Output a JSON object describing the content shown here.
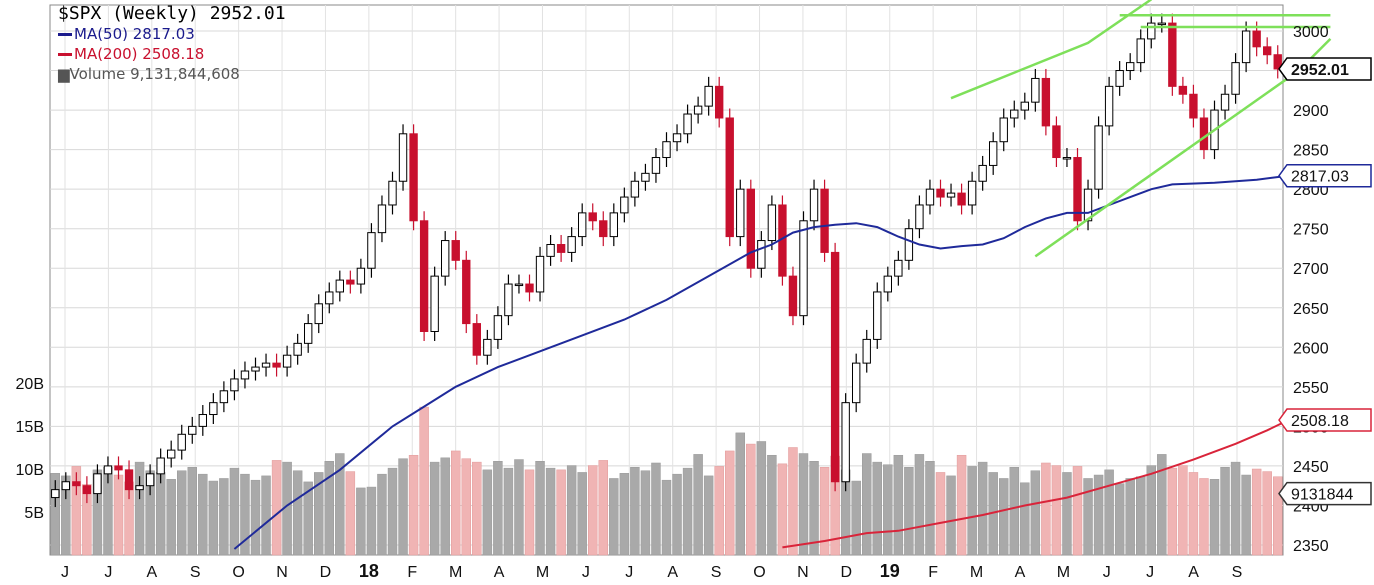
{
  "chart_data": {
    "type": "candlestick",
    "title": "$SPX (Weekly) 2952.01",
    "colors": {
      "up": "#ffffff",
      "down": "#c8102e",
      "ma50": "#1f2a9a",
      "ma200": "#d9243a",
      "trend": "#7ee05a",
      "vol_up": "#a9a9a9",
      "vol_down": "#f0b4b4"
    },
    "legend": {
      "symbol": "$SPX (Weekly) 2952.01",
      "ma50": "MA(50) 2817.03",
      "ma200": "MA(200) 2508.18",
      "volume": "Volume 9,131,844,608"
    },
    "y_axis": {
      "ticks": [
        2350,
        2400,
        2450,
        2500,
        2550,
        2600,
        2650,
        2700,
        2750,
        2800,
        2850,
        2900,
        2950,
        3000
      ],
      "range": [
        2330,
        3035
      ]
    },
    "volume_axis": {
      "ticks": [
        "5B",
        "10B",
        "15B",
        "20B"
      ],
      "values": [
        5,
        10,
        15,
        20
      ]
    },
    "x_axis": {
      "labels": [
        "J",
        "J",
        "A",
        "S",
        "O",
        "N",
        "D",
        "18",
        "F",
        "M",
        "A",
        "M",
        "J",
        "J",
        "A",
        "S",
        "O",
        "N",
        "D",
        "19",
        "F",
        "M",
        "A",
        "M",
        "J",
        "J",
        "A",
        "S"
      ],
      "bold": [
        "18",
        "19"
      ]
    },
    "callouts": {
      "last_price": "2952.01",
      "ma50": "2817.03",
      "ma200": "2508.18",
      "volume": "9131844"
    },
    "closes": [
      2420,
      2430,
      2425,
      2415,
      2440,
      2450,
      2445,
      2420,
      2425,
      2440,
      2460,
      2470,
      2490,
      2500,
      2515,
      2530,
      2545,
      2560,
      2570,
      2575,
      2580,
      2575,
      2590,
      2605,
      2630,
      2655,
      2670,
      2685,
      2680,
      2700,
      2745,
      2780,
      2810,
      2870,
      2760,
      2620,
      2690,
      2735,
      2710,
      2630,
      2590,
      2610,
      2640,
      2680,
      2680,
      2670,
      2715,
      2730,
      2720,
      2740,
      2770,
      2760,
      2740,
      2770,
      2790,
      2810,
      2820,
      2840,
      2860,
      2870,
      2895,
      2905,
      2930,
      2890,
      2740,
      2800,
      2700,
      2735,
      2780,
      2690,
      2640,
      2760,
      2800,
      2720,
      2430,
      2530,
      2580,
      2610,
      2670,
      2690,
      2710,
      2750,
      2780,
      2800,
      2790,
      2795,
      2780,
      2810,
      2830,
      2860,
      2890,
      2900,
      2910,
      2940,
      2880,
      2840,
      2840,
      2760,
      2800,
      2880,
      2930,
      2950,
      2960,
      2990,
      3010,
      3010,
      2930,
      2920,
      2890,
      2850,
      2900,
      2920,
      2960,
      3000,
      2980,
      2970,
      2952
    ],
    "ma50": [
      null,
      null,
      null,
      null,
      null,
      null,
      null,
      null,
      null,
      null,
      null,
      null,
      null,
      null,
      null,
      null,
      null,
      null,
      null,
      null,
      null,
      null,
      null,
      null,
      null,
      null,
      null,
      null,
      null,
      null,
      null,
      null,
      null,
      null,
      null,
      null,
      null,
      null,
      null,
      null,
      null,
      null,
      null,
      null,
      null,
      null,
      null,
      null,
      null,
      null,
      null,
      null,
      null,
      null,
      null,
      null,
      null,
      null,
      null,
      null,
      null,
      null,
      null,
      null,
      null,
      null,
      null,
      null,
      null,
      null,
      null,
      null,
      null,
      null,
      null,
      null,
      null,
      null,
      null,
      null,
      null,
      null,
      null,
      null,
      null,
      null,
      null,
      null,
      null,
      null,
      null,
      null,
      null,
      null,
      null,
      null,
      null,
      null,
      null,
      null,
      null,
      null,
      null,
      null,
      null,
      null,
      null,
      null,
      null,
      null,
      null,
      null,
      null,
      null,
      null,
      null,
      null
    ],
    "ma50_points": [
      [
        17,
        2345
      ],
      [
        22,
        2400
      ],
      [
        27,
        2445
      ],
      [
        32,
        2500
      ],
      [
        35,
        2525
      ],
      [
        38,
        2550
      ],
      [
        42,
        2575
      ],
      [
        46,
        2595
      ],
      [
        50,
        2615
      ],
      [
        54,
        2635
      ],
      [
        58,
        2660
      ],
      [
        62,
        2690
      ],
      [
        66,
        2720
      ],
      [
        68,
        2730
      ],
      [
        70,
        2745
      ],
      [
        72,
        2752
      ],
      [
        74,
        2755
      ],
      [
        76,
        2757
      ],
      [
        78,
        2752
      ],
      [
        80,
        2740
      ],
      [
        82,
        2730
      ],
      [
        84,
        2725
      ],
      [
        86,
        2728
      ],
      [
        88,
        2730
      ],
      [
        90,
        2738
      ],
      [
        92,
        2752
      ],
      [
        94,
        2763
      ],
      [
        96,
        2770
      ],
      [
        98,
        2770
      ],
      [
        100,
        2780
      ],
      [
        102,
        2790
      ],
      [
        104,
        2800
      ],
      [
        106,
        2806
      ],
      [
        110,
        2808
      ],
      [
        114,
        2812
      ],
      [
        117,
        2817
      ]
    ],
    "ma200_points": [
      [
        69,
        2347
      ],
      [
        73,
        2355
      ],
      [
        77,
        2365
      ],
      [
        80,
        2368
      ],
      [
        84,
        2378
      ],
      [
        88,
        2388
      ],
      [
        92,
        2400
      ],
      [
        96,
        2410
      ],
      [
        100,
        2425
      ],
      [
        104,
        2440
      ],
      [
        108,
        2458
      ],
      [
        112,
        2478
      ],
      [
        115,
        2495
      ],
      [
        117,
        2508
      ]
    ],
    "volume_billions": [
      9.5,
      9.2,
      10.3,
      8.2,
      9.9,
      10.2,
      9.3,
      8.5,
      10.8,
      9.8,
      9.6,
      8.8,
      9.8,
      10.2,
      9.4,
      8.6,
      8.9,
      10.1,
      9.4,
      8.7,
      9.2,
      11.0,
      10.8,
      9.8,
      8.5,
      9.6,
      10.9,
      11.8,
      9.7,
      7.8,
      7.9,
      9.4,
      10.1,
      11.2,
      11.6,
      17.2,
      10.8,
      11.3,
      12.1,
      11.2,
      10.8,
      9.9,
      10.9,
      10.1,
      11.1,
      9.9,
      10.9,
      10.1,
      9.9,
      10.4,
      9.6,
      10.4,
      11.0,
      8.9,
      9.5,
      10.2,
      9.8,
      10.7,
      8.7,
      9.4,
      10.1,
      11.7,
      9.2,
      10.3,
      12.1,
      14.2,
      12.9,
      13.2,
      11.6,
      10.6,
      12.5,
      11.8,
      10.9,
      10.2,
      11.5,
      9.9,
      8.6,
      11.8,
      10.8,
      10.5,
      11.6,
      10.2,
      11.7,
      10.9,
      9.6,
      9.2,
      11.6,
      10.3,
      10.8,
      9.6,
      8.9,
      10.2,
      8.4,
      9.8,
      10.7,
      10.4,
      9.6,
      10.3,
      8.9,
      9.3,
      9.9,
      8.3,
      8.9,
      9.1,
      10.4,
      11.7,
      10.1,
      10.4,
      9.6,
      8.9,
      8.8,
      10.2,
      10.8,
      9.3,
      10.0,
      9.7,
      9.1
    ]
  }
}
